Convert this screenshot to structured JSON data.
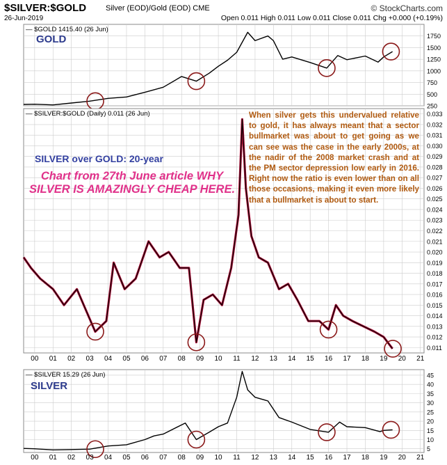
{
  "header": {
    "title": "$SILVER:$GOLD",
    "subtitle": "Silver (EOD)/Gold (EOD) CME",
    "brand": "© StockCharts.com",
    "date": "26-Jun-2019",
    "ohlc": "Open 0.011  High 0.011  Low 0.011  Close 0.011  Chg +0.000 (+0.19%)"
  },
  "labels": {
    "gold_big": "GOLD",
    "ratio_big": "SILVER over GOLD: 20-year",
    "article": "Chart from 27th June article WHY SILVER IS AMAZINGLY CHEAP HERE.",
    "silver_big": "SILVER"
  },
  "annotation": "When silver gets this undervalued relative to gold, it has always meant that a sector bullmarket was about to get going as we can see was the case in the early 2000s, at the nadir of the 2008 market crash and at the PM sector depression low early in 2016. Right now the ratio is even lower than on all those occasions, making it even more likely that a bullmarket is about to start.",
  "colors": {
    "line": "#000000",
    "ratio_fill": "#b0103a",
    "circle": "#8b1a1a",
    "grid": "#cccccc",
    "annotation": "#b05a10",
    "pink": "#e0318a",
    "navy": "#2c3a8c"
  },
  "chart_data": [
    {
      "type": "line",
      "legend": "$GOLD 1415.40 (26 Jun)",
      "y_ticks": [
        250,
        500,
        750,
        1000,
        1250,
        1500,
        1750
      ],
      "ylim": [
        250,
        2000
      ],
      "x": [
        1999.4,
        2000,
        2001,
        2002,
        2003,
        2004,
        2005,
        2006,
        2007,
        2008,
        2008.8,
        2009.5,
        2010,
        2010.5,
        2011,
        2011.6,
        2012,
        2012.7,
        2013,
        2013.5,
        2014,
        2015,
        2015.9,
        2016.5,
        2017,
        2018,
        2018.7,
        2019,
        2019.48
      ],
      "y": [
        280,
        285,
        270,
        310,
        350,
        410,
        440,
        540,
        650,
        880,
        780,
        950,
        1100,
        1230,
        1400,
        1830,
        1650,
        1750,
        1650,
        1250,
        1300,
        1180,
        1060,
        1330,
        1240,
        1320,
        1190,
        1300,
        1415
      ]
    },
    {
      "type": "line",
      "legend": "$SILVER:$GOLD (Daily) 0.011 (26 Jun)",
      "y_ticks": [
        0.011,
        0.012,
        0.013,
        0.014,
        0.015,
        0.016,
        0.017,
        0.018,
        0.019,
        0.02,
        0.021,
        0.022,
        0.023,
        0.024,
        0.025,
        0.026,
        0.027,
        0.028,
        0.029,
        0.03,
        0.031,
        0.032,
        0.033
      ],
      "ylim": [
        0.0105,
        0.0335
      ],
      "x": [
        1999.4,
        1999.8,
        2000.3,
        2001,
        2001.6,
        2002.3,
        2002.8,
        2003.3,
        2003.9,
        2004.3,
        2004.9,
        2005.5,
        2006.2,
        2006.8,
        2007.3,
        2007.9,
        2008.4,
        2008.8,
        2009.2,
        2009.7,
        2010.2,
        2010.7,
        2011.1,
        2011.3,
        2011.5,
        2011.8,
        2012.2,
        2012.7,
        2013.3,
        2013.8,
        2014.3,
        2014.9,
        2015.5,
        2016.0,
        2016.4,
        2016.8,
        2017.3,
        2017.9,
        2018.5,
        2019.0,
        2019.48
      ],
      "y": [
        0.0195,
        0.0185,
        0.0175,
        0.0165,
        0.015,
        0.0165,
        0.0145,
        0.0125,
        0.0135,
        0.019,
        0.0165,
        0.0175,
        0.021,
        0.0195,
        0.02,
        0.0185,
        0.0185,
        0.0115,
        0.0155,
        0.016,
        0.015,
        0.0185,
        0.0235,
        0.0325,
        0.026,
        0.0215,
        0.0195,
        0.019,
        0.0165,
        0.017,
        0.0155,
        0.0135,
        0.0135,
        0.0127,
        0.015,
        0.014,
        0.0135,
        0.013,
        0.0125,
        0.012,
        0.0109
      ]
    },
    {
      "type": "line",
      "legend": "$SILVER 15.29 (26 Jun)",
      "y_ticks": [
        5,
        10,
        15,
        20,
        25,
        30,
        35,
        40,
        45
      ],
      "ylim": [
        3,
        48
      ],
      "x": [
        1999.4,
        2000,
        2001,
        2002,
        2003,
        2004,
        2005,
        2006,
        2006.5,
        2007,
        2008.2,
        2008.8,
        2009.5,
        2010,
        2010.5,
        2011,
        2011.3,
        2011.6,
        2012,
        2012.7,
        2013.3,
        2014,
        2015,
        2016,
        2016.6,
        2017,
        2018,
        2018.8,
        2019,
        2019.48
      ],
      "y": [
        5.2,
        5.0,
        4.4,
        4.6,
        4.8,
        6.5,
        7.2,
        10,
        12,
        13,
        19,
        10,
        14,
        17,
        19,
        33,
        47,
        37,
        33,
        31,
        22,
        19.5,
        15.5,
        14,
        19.5,
        17,
        16.5,
        14.3,
        15,
        15.3
      ]
    }
  ],
  "x_axis": {
    "tick_years": [
      2000,
      2001,
      2002,
      2003,
      2004,
      2005,
      2006,
      2007,
      2008,
      2009,
      2010,
      2011,
      2012,
      2013,
      2014,
      2015,
      2016,
      2017,
      2018,
      2019,
      2020,
      2021
    ],
    "tick_labels": [
      "00",
      "01",
      "02",
      "03",
      "04",
      "05",
      "06",
      "07",
      "08",
      "09",
      "10",
      "11",
      "12",
      "13",
      "14",
      "15",
      "16",
      "17",
      "18",
      "19",
      "20",
      "21"
    ]
  },
  "circles": {
    "gold": [
      2003.3,
      2008.8,
      2015.9,
      2019.4
    ],
    "ratio": [
      2003.3,
      2008.8,
      2016.0,
      2019.5
    ],
    "silver": [
      2003.3,
      2008.8,
      2015.9,
      2019.4
    ]
  }
}
